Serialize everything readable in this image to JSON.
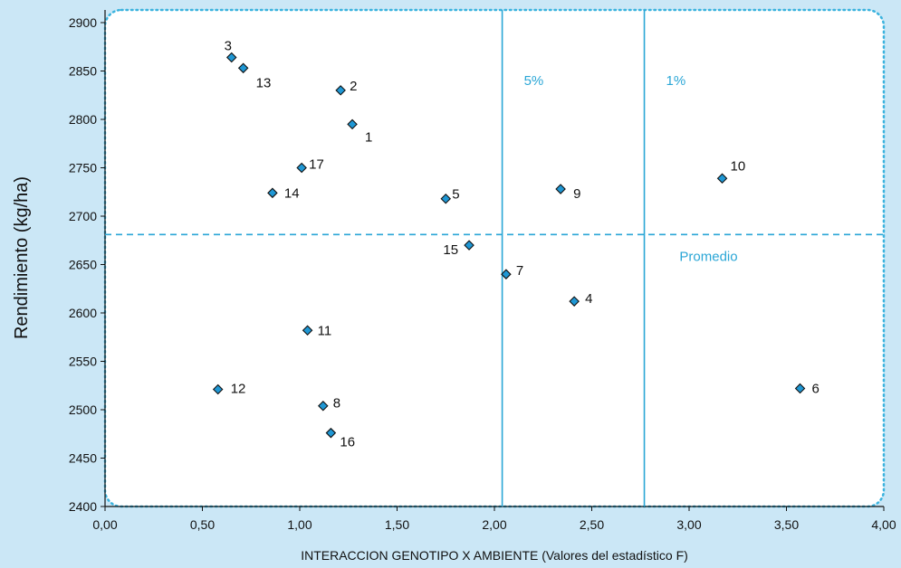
{
  "chart_data": {
    "type": "scatter",
    "title": "",
    "xlabel": "INTERACCION GENOTIPO X AMBIENTE (Valores del estadístico F)",
    "ylabel": "Rendimiento (kg/ha)",
    "xlim": [
      0,
      4
    ],
    "ylim": [
      2400,
      2900
    ],
    "x_ticks": [
      "0,00",
      "0,50",
      "1,00",
      "1,50",
      "2,00",
      "2,50",
      "3,00",
      "3,50",
      "4,00"
    ],
    "y_ticks": [
      "2400",
      "2450",
      "2500",
      "2550",
      "2600",
      "2650",
      "2700",
      "2750",
      "2800",
      "2850",
      "2900"
    ],
    "grid": false,
    "marker_color": "#1f97d4",
    "line_color": "#2aa6d6",
    "background_color": "#cbe7f6",
    "plot_background": "#ffffff",
    "points": [
      {
        "label": "3",
        "x": 0.65,
        "y": 2864
      },
      {
        "label": "13",
        "x": 0.71,
        "y": 2853
      },
      {
        "label": "2",
        "x": 1.21,
        "y": 2830
      },
      {
        "label": "1",
        "x": 1.27,
        "y": 2795
      },
      {
        "label": "17",
        "x": 1.01,
        "y": 2750
      },
      {
        "label": "14",
        "x": 0.86,
        "y": 2724
      },
      {
        "label": "5",
        "x": 1.75,
        "y": 2718
      },
      {
        "label": "9",
        "x": 2.34,
        "y": 2728
      },
      {
        "label": "10",
        "x": 3.17,
        "y": 2739
      },
      {
        "label": "15",
        "x": 1.87,
        "y": 2670
      },
      {
        "label": "7",
        "x": 2.06,
        "y": 2640
      },
      {
        "label": "4",
        "x": 2.41,
        "y": 2612
      },
      {
        "label": "11",
        "x": 1.04,
        "y": 2582
      },
      {
        "label": "12",
        "x": 0.58,
        "y": 2521
      },
      {
        "label": "6",
        "x": 3.57,
        "y": 2522
      },
      {
        "label": "8",
        "x": 1.12,
        "y": 2504
      },
      {
        "label": "16",
        "x": 1.16,
        "y": 2476
      }
    ],
    "reference_lines": [
      {
        "orientation": "vertical",
        "x": 2.04,
        "label": "5%",
        "style": "solid"
      },
      {
        "orientation": "vertical",
        "x": 2.77,
        "label": "1%",
        "style": "solid"
      },
      {
        "orientation": "horizontal",
        "y": 2681,
        "label": "Promedio",
        "style": "dashed"
      }
    ]
  }
}
